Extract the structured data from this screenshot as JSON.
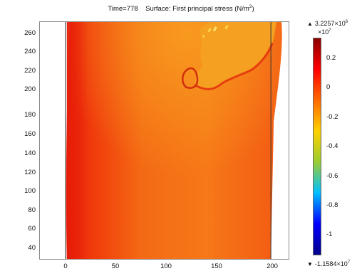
{
  "title": {
    "time": "Time=778",
    "surface": "Surface: First principal stress (N/m",
    "sup": "2",
    "close": ")"
  },
  "y_ticks": [
    "260",
    "240",
    "220",
    "200",
    "180",
    "160",
    "140",
    "120",
    "100",
    "80",
    "60",
    "40"
  ],
  "x_ticks": [
    "0",
    "50",
    "100",
    "150",
    "200"
  ],
  "colorbar": {
    "max_symbol": "▲",
    "max_text": "3.2257×10",
    "max_exp": "6",
    "unit_text": "×10",
    "unit_exp": "7",
    "min_symbol": "▼",
    "min_text": "-1.1584×10",
    "min_exp": "7",
    "ticks": [
      "0.2",
      "0",
      "-0.2",
      "-0.4",
      "-0.6",
      "-0.8",
      "-1"
    ],
    "colors": [
      "#8b0000",
      "#ff0000",
      "#ff6a00",
      "#ffd000",
      "#9acd32",
      "#00bfff",
      "#0000ff",
      "#00008b"
    ]
  }
}
